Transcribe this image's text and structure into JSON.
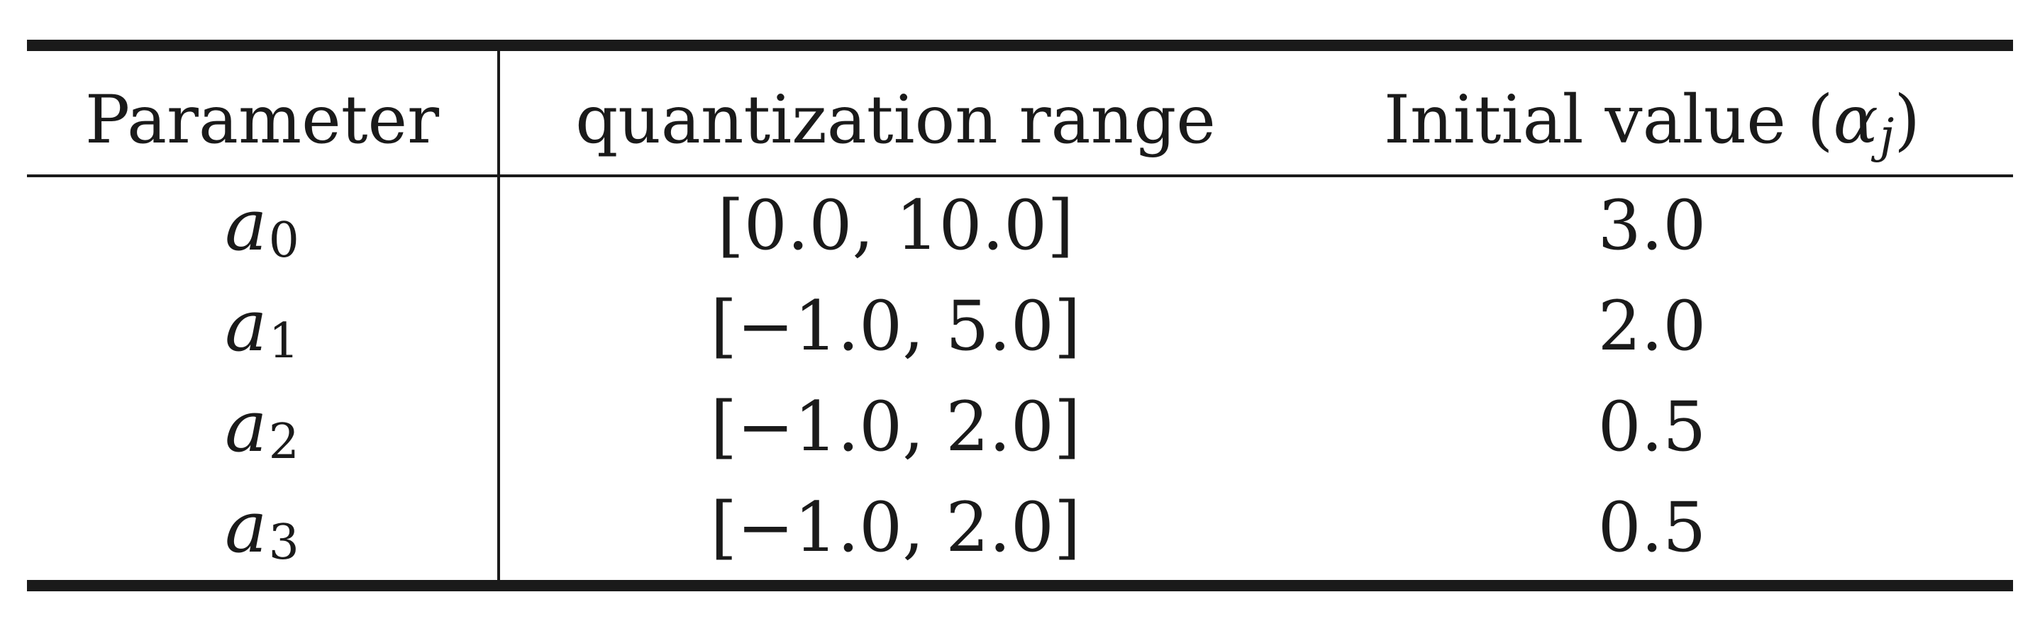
{
  "table": {
    "headers": {
      "parameter": "Parameter",
      "range": "quantization range",
      "initial_prefix": "Initial value (",
      "initial_symbol": "α",
      "initial_subscript": "j",
      "initial_suffix": ")"
    },
    "rows": [
      {
        "symbol": "a",
        "subscript": "0",
        "range": "[0.0, 10.0]",
        "initial": "3.0"
      },
      {
        "symbol": "a",
        "subscript": "1",
        "range": "[−1.0, 5.0]",
        "initial": "2.0"
      },
      {
        "symbol": "a",
        "subscript": "2",
        "range": "[−1.0, 2.0]",
        "initial": "0.5"
      },
      {
        "symbol": "a",
        "subscript": "3",
        "range": "[−1.0, 2.0]",
        "initial": "0.5"
      }
    ]
  }
}
